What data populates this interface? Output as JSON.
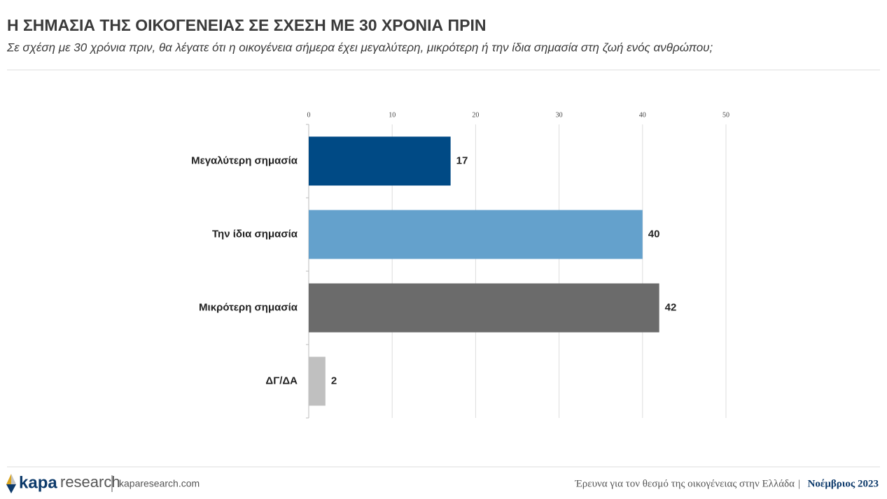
{
  "chart_data": {
    "type": "bar",
    "orientation": "horizontal",
    "title": "Η ΣΗΜΑΣΙΑ ΤΗΣ ΟΙΚΟΓΕΝΕΙΑΣ ΣΕ ΣΧΕΣΗ ΜΕ 30 ΧΡΟΝΙΑ ΠΡΙΝ",
    "subtitle": "Σε σχέση με 30 χρόνια πριν, θα λέγατε ότι η οικογένεια σήμερα έχει μεγαλύτερη, μικρότερη ή την ίδια σημασία στη ζωή ενός ανθρώπου;",
    "categories": [
      "Μεγαλύτερη σημασία",
      "Την ίδια σημασία",
      "Μικρότερη σημασία",
      "ΔΓ/ΔΑ"
    ],
    "values": [
      17,
      40,
      42,
      2
    ],
    "colors": [
      "#004a85",
      "#64a1cc",
      "#6b6b6b",
      "#c0c0c0"
    ],
    "xlim": [
      0,
      50
    ],
    "xticks": [
      0,
      10,
      20,
      30,
      40,
      50
    ],
    "grid": true
  },
  "footer": {
    "logo_bold": "kapa",
    "logo_light": "research",
    "website": "kaparesearch.com",
    "survey": "Έρευνα για τον θεσμό της οικογένειας στην Ελλάδα",
    "date": "Νοέμβριος 2023"
  }
}
